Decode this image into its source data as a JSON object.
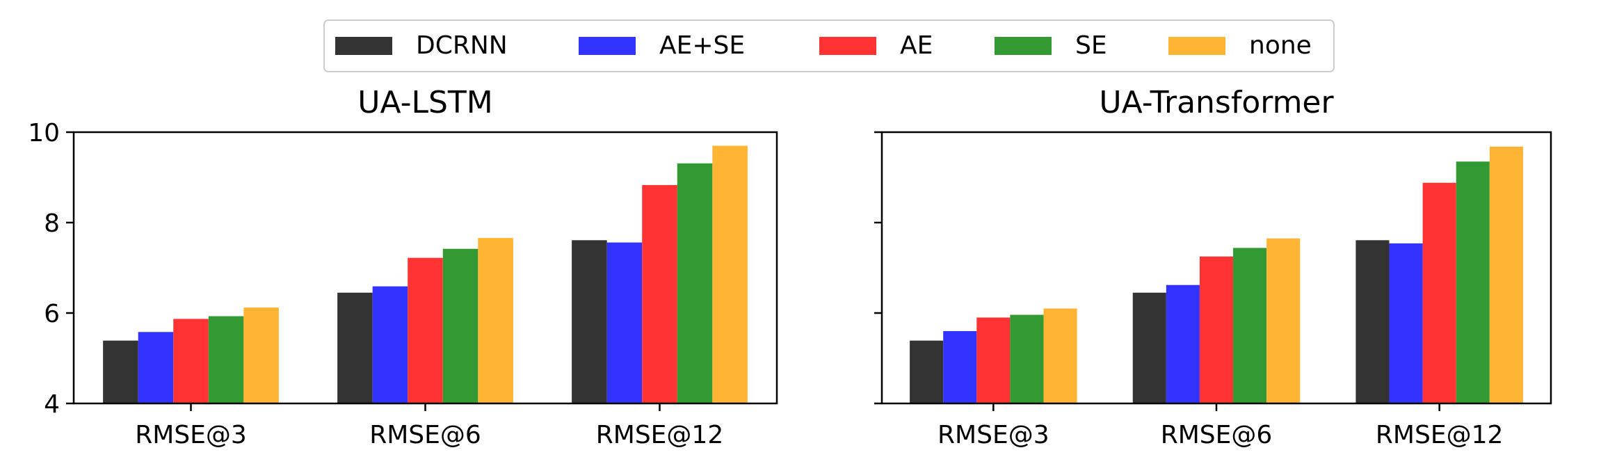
{
  "legend": {
    "items": [
      {
        "label": "DCRNN",
        "color": "#333333"
      },
      {
        "label": "AE+SE",
        "color": "#3333ff"
      },
      {
        "label": "AE",
        "color": "#ff3333"
      },
      {
        "label": "SE",
        "color": "#339933"
      },
      {
        "label": "none",
        "color": "#ffb433"
      }
    ]
  },
  "chart_data": [
    {
      "type": "bar",
      "title": "UA-LSTM",
      "categories": [
        "RMSE@3",
        "RMSE@6",
        "RMSE@12"
      ],
      "series": [
        {
          "name": "DCRNN",
          "values": [
            5.39,
            6.45,
            7.61
          ]
        },
        {
          "name": "AE+SE",
          "values": [
            5.58,
            6.59,
            7.56
          ]
        },
        {
          "name": "AE",
          "values": [
            5.87,
            7.22,
            8.83
          ]
        },
        {
          "name": "SE",
          "values": [
            5.93,
            7.42,
            9.31
          ]
        },
        {
          "name": "none",
          "values": [
            6.12,
            7.66,
            9.7
          ]
        }
      ],
      "ylim": [
        4,
        10
      ],
      "yticks": [
        "4",
        "6",
        "8",
        "10"
      ],
      "xlabel": "",
      "ylabel": "",
      "grid": false,
      "legend_position": "top-center"
    },
    {
      "type": "bar",
      "title": "UA-Transformer",
      "categories": [
        "RMSE@3",
        "RMSE@6",
        "RMSE@12"
      ],
      "series": [
        {
          "name": "DCRNN",
          "values": [
            5.39,
            6.45,
            7.61
          ]
        },
        {
          "name": "AE+SE",
          "values": [
            5.6,
            6.62,
            7.54
          ]
        },
        {
          "name": "AE",
          "values": [
            5.9,
            7.25,
            8.88
          ]
        },
        {
          "name": "SE",
          "values": [
            5.96,
            7.44,
            9.35
          ]
        },
        {
          "name": "none",
          "values": [
            6.1,
            7.65,
            9.68
          ]
        }
      ],
      "ylim": [
        4,
        10
      ],
      "yticks": [],
      "xlabel": "",
      "ylabel": "",
      "grid": false,
      "legend_position": "top-center"
    }
  ]
}
